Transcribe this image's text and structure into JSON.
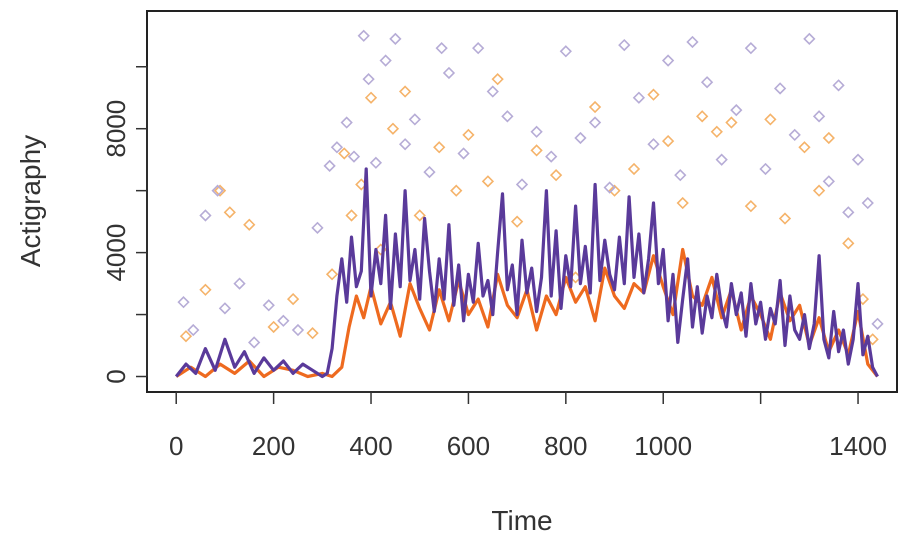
{
  "chart_data": {
    "type": "line",
    "title": "",
    "xlabel": "Time",
    "ylabel": "Actigraphy",
    "xlim": [
      -60,
      1480
    ],
    "ylim": [
      -500,
      11800
    ],
    "x_ticks": [
      {
        "value": 0,
        "label": "0"
      },
      {
        "value": 200,
        "label": "200"
      },
      {
        "value": 400,
        "label": "400"
      },
      {
        "value": 600,
        "label": "600"
      },
      {
        "value": 800,
        "label": "800"
      },
      {
        "value": 1000,
        "label": "1000"
      },
      {
        "value": 1200,
        "label": ""
      },
      {
        "value": 1400,
        "label": "1400"
      }
    ],
    "y_ticks": [
      {
        "value": 0,
        "label": "0"
      },
      {
        "value": 2000,
        "label": ""
      },
      {
        "value": 4000,
        "label": "4000"
      },
      {
        "value": 6000,
        "label": ""
      },
      {
        "value": 8000,
        "label": "8000"
      },
      {
        "value": 10000,
        "label": ""
      }
    ],
    "grid": false,
    "legend": "none",
    "series": [
      {
        "style": "points",
        "marker": "open-diamond",
        "color": "#f5b36a",
        "x": [
          20,
          60,
          90,
          110,
          150,
          200,
          240,
          280,
          320,
          345,
          360,
          380,
          400,
          420,
          445,
          470,
          500,
          540,
          575,
          600,
          640,
          660,
          700,
          740,
          780,
          820,
          860,
          900,
          940,
          980,
          1010,
          1040,
          1080,
          1110,
          1140,
          1180,
          1220,
          1250,
          1290,
          1320,
          1340,
          1380,
          1410,
          1430
        ],
        "y": [
          1300,
          2800,
          6000,
          5300,
          4900,
          1600,
          2500,
          1400,
          3300,
          7200,
          5200,
          6200,
          9000,
          4100,
          8000,
          9200,
          5200,
          7400,
          6000,
          7800,
          6300,
          9600,
          5000,
          7300,
          6500,
          3200,
          8700,
          6000,
          6700,
          9100,
          7600,
          5600,
          8400,
          7900,
          8200,
          5500,
          8300,
          5100,
          7400,
          6000,
          7700,
          4300,
          2500,
          1200
        ]
      },
      {
        "style": "points",
        "marker": "open-diamond",
        "color": "#b6acd6",
        "x": [
          15,
          35,
          60,
          85,
          100,
          130,
          160,
          190,
          220,
          250,
          290,
          315,
          330,
          350,
          365,
          385,
          395,
          410,
          430,
          450,
          470,
          490,
          520,
          545,
          560,
          590,
          620,
          650,
          680,
          710,
          740,
          770,
          800,
          830,
          860,
          890,
          920,
          950,
          980,
          1010,
          1035,
          1060,
          1090,
          1120,
          1150,
          1180,
          1210,
          1240,
          1270,
          1300,
          1320,
          1340,
          1360,
          1380,
          1400,
          1420,
          1440
        ],
        "y": [
          2400,
          1500,
          5200,
          6000,
          2200,
          3000,
          1100,
          2300,
          1800,
          1500,
          4800,
          6800,
          7400,
          8200,
          7100,
          11000,
          9600,
          6900,
          10200,
          10900,
          7500,
          8300,
          6600,
          10600,
          9800,
          7200,
          10600,
          9200,
          8400,
          6200,
          7900,
          7100,
          10500,
          7700,
          8200,
          6100,
          10700,
          9000,
          7500,
          10200,
          6500,
          10800,
          9500,
          7000,
          8600,
          10600,
          6700,
          9300,
          7800,
          10900,
          8400,
          6300,
          9400,
          5300,
          7000,
          5600,
          1700
        ]
      },
      {
        "style": "line",
        "color": "#ee6a1f",
        "x": [
          0,
          30,
          60,
          90,
          120,
          150,
          180,
          210,
          240,
          270,
          300,
          320,
          340,
          355,
          370,
          385,
          400,
          420,
          440,
          460,
          480,
          500,
          520,
          540,
          560,
          580,
          600,
          620,
          640,
          660,
          680,
          700,
          720,
          740,
          760,
          780,
          800,
          820,
          840,
          860,
          880,
          900,
          920,
          940,
          960,
          980,
          1000,
          1020,
          1040,
          1060,
          1080,
          1100,
          1120,
          1140,
          1160,
          1180,
          1200,
          1220,
          1240,
          1260,
          1280,
          1300,
          1320,
          1340,
          1360,
          1380,
          1400,
          1420,
          1440
        ],
        "y": [
          0,
          300,
          0,
          400,
          100,
          500,
          0,
          300,
          200,
          0,
          100,
          0,
          300,
          1600,
          2600,
          1900,
          2900,
          1700,
          2400,
          1300,
          3000,
          2200,
          1500,
          2800,
          1800,
          3100,
          2000,
          2500,
          1600,
          3300,
          2300,
          1900,
          2800,
          1500,
          2600,
          2000,
          3200,
          2400,
          2900,
          1800,
          3500,
          2600,
          2200,
          3000,
          2700,
          3900,
          2900,
          2000,
          4100,
          2600,
          2300,
          3200,
          1900,
          2800,
          1500,
          2600,
          2000,
          1200,
          2700,
          1800,
          2300,
          1000,
          1900,
          800,
          1500,
          700,
          2100,
          400,
          0
        ]
      },
      {
        "style": "line",
        "color": "#5a3a9a",
        "x": [
          0,
          20,
          40,
          60,
          80,
          100,
          120,
          140,
          160,
          180,
          200,
          220,
          240,
          260,
          280,
          300,
          310,
          320,
          330,
          340,
          350,
          360,
          370,
          380,
          390,
          400,
          410,
          420,
          430,
          440,
          450,
          460,
          470,
          480,
          490,
          500,
          510,
          520,
          530,
          540,
          550,
          560,
          570,
          580,
          590,
          600,
          610,
          620,
          630,
          640,
          650,
          660,
          670,
          680,
          690,
          700,
          710,
          720,
          730,
          740,
          750,
          760,
          770,
          780,
          790,
          800,
          810,
          820,
          830,
          840,
          850,
          860,
          870,
          880,
          890,
          900,
          910,
          920,
          930,
          940,
          950,
          960,
          970,
          980,
          990,
          1000,
          1010,
          1020,
          1030,
          1040,
          1050,
          1060,
          1070,
          1080,
          1090,
          1100,
          1110,
          1120,
          1130,
          1140,
          1150,
          1160,
          1170,
          1180,
          1190,
          1200,
          1210,
          1220,
          1230,
          1240,
          1250,
          1260,
          1270,
          1280,
          1290,
          1300,
          1310,
          1320,
          1330,
          1340,
          1350,
          1360,
          1370,
          1380,
          1390,
          1400,
          1410,
          1420,
          1430,
          1440
        ],
        "y": [
          0,
          400,
          100,
          900,
          200,
          1200,
          300,
          800,
          100,
          600,
          200,
          500,
          100,
          400,
          200,
          0,
          100,
          900,
          2600,
          3800,
          2400,
          4500,
          2900,
          3400,
          6700,
          2600,
          4100,
          3000,
          5200,
          2200,
          4600,
          2900,
          6000,
          3100,
          4100,
          2500,
          5100,
          3400,
          2100,
          3800,
          2500,
          4900,
          2300,
          3600,
          1800,
          3300,
          2400,
          4300,
          2600,
          3100,
          2000,
          4000,
          5900,
          2800,
          3600,
          2000,
          4400,
          2700,
          3500,
          2100,
          3200,
          6000,
          2600,
          4700,
          2200,
          3900,
          2900,
          5500,
          3000,
          4200,
          2700,
          6200,
          3100,
          4400,
          3300,
          2800,
          4500,
          3000,
          5800,
          3200,
          4600,
          2700,
          3800,
          5600,
          3000,
          4100,
          1800,
          3300,
          1100,
          2500,
          3800,
          1600,
          2900,
          1400,
          2600,
          1900,
          3300,
          2200,
          1600,
          3000,
          2000,
          2700,
          1300,
          3000,
          1700,
          2400,
          1200,
          2200,
          1700,
          3100,
          1000,
          2600,
          1500,
          1200,
          2000,
          900,
          1700,
          3900,
          1200,
          600,
          2100,
          800,
          1500,
          400,
          1200,
          3000,
          700,
          1300,
          300,
          0
        ]
      }
    ]
  }
}
